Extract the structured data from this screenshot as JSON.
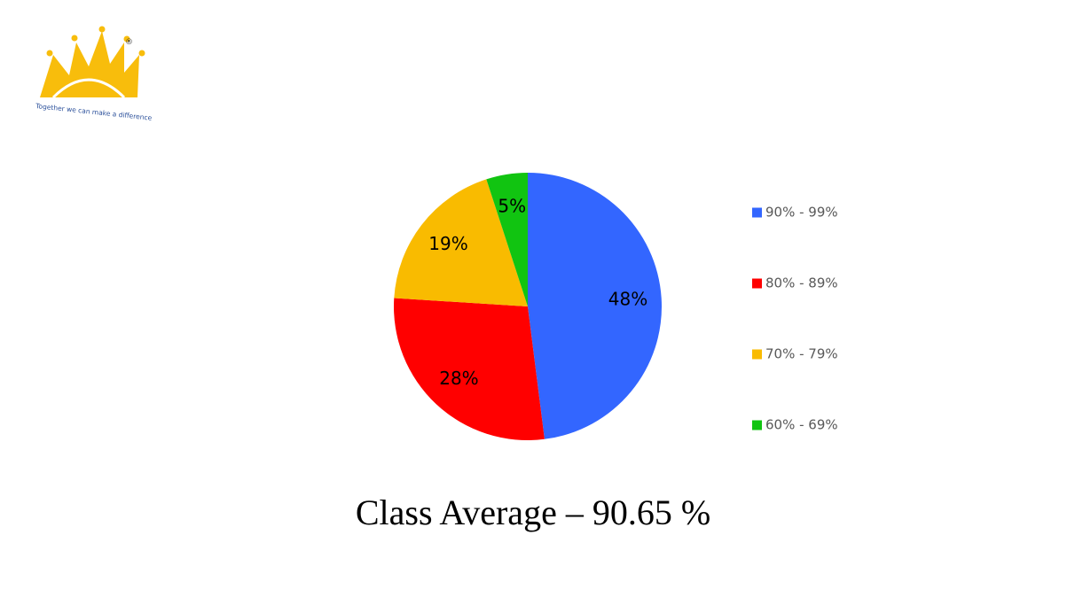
{
  "chart_data": {
    "type": "pie",
    "title": "Class Average – 90.65 %",
    "categories": [
      "90% - 99%",
      "80% - 89%",
      "70% - 79%",
      "60% - 69%"
    ],
    "values": [
      48,
      28,
      19,
      5
    ],
    "value_labels": [
      "48%",
      "28%",
      "19%",
      "5%"
    ],
    "colors": [
      "#3366ff",
      "#ff0000",
      "#f9bb00",
      "#11c411"
    ],
    "legend": "right"
  },
  "logo": {
    "registered": "®",
    "tagline": "Together we can make a difference"
  }
}
